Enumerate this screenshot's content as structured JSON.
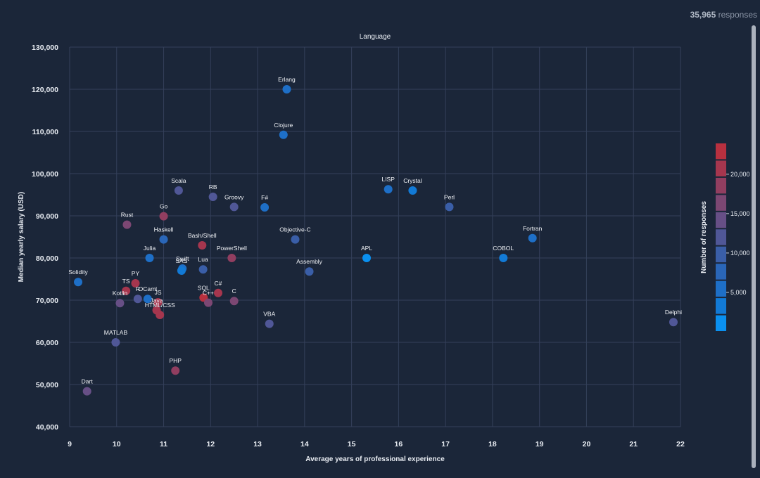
{
  "responses": {
    "count": "35,965",
    "label": "responses"
  },
  "chart_data": {
    "type": "scatter",
    "title": "Language",
    "xlabel": "Average years of professional experience",
    "ylabel": "Median yearly salary (USD)",
    "xlim": [
      9,
      22
    ],
    "ylim": [
      40000,
      130000
    ],
    "xticks": [
      9,
      10,
      11,
      12,
      13,
      14,
      15,
      16,
      17,
      18,
      19,
      20,
      21,
      22
    ],
    "yticks": [
      40000,
      50000,
      60000,
      70000,
      80000,
      90000,
      100000,
      110000,
      120000,
      130000
    ],
    "ytick_labels": [
      "40,000",
      "50,000",
      "60,000",
      "70,000",
      "80,000",
      "90,000",
      "100,000",
      "110,000",
      "120,000",
      "130,000"
    ],
    "colorbar": {
      "label": "Number of responses",
      "ticks": [
        5000,
        10000,
        15000,
        20000
      ],
      "tick_labels": [
        "5,000",
        "10,000",
        "15,000",
        "20,000"
      ],
      "range": [
        0,
        24000
      ],
      "colors": [
        "#0a90f0",
        "#127ad6",
        "#1e6fc7",
        "#2a66b8",
        "#3a5ea7",
        "#505797",
        "#674f86",
        "#7c4773",
        "#913e60",
        "#a6364e",
        "#b8303f"
      ]
    },
    "points": [
      {
        "name": "Erlang",
        "x": 13.62,
        "y": 120000,
        "n": 5800
      },
      {
        "name": "Clojure",
        "x": 13.55,
        "y": 109200,
        "n": 6500
      },
      {
        "name": "LISP",
        "x": 15.78,
        "y": 96300,
        "n": 6200
      },
      {
        "name": "Crystal",
        "x": 16.3,
        "y": 96000,
        "n": 2500
      },
      {
        "name": "Scala",
        "x": 11.32,
        "y": 96000,
        "n": 11000
      },
      {
        "name": "RB",
        "x": 12.05,
        "y": 94500,
        "n": 11000
      },
      {
        "name": "Groovy",
        "x": 12.5,
        "y": 92100,
        "n": 12500
      },
      {
        "name": "F#",
        "x": 13.15,
        "y": 92000,
        "n": 6200
      },
      {
        "name": "Perl",
        "x": 17.08,
        "y": 92100,
        "n": 10500
      },
      {
        "name": "Go",
        "x": 11.0,
        "y": 89900,
        "n": 17500
      },
      {
        "name": "Rust",
        "x": 10.22,
        "y": 87900,
        "n": 15500
      },
      {
        "name": "Haskell",
        "x": 11.0,
        "y": 84400,
        "n": 8500
      },
      {
        "name": "Objective-C",
        "x": 13.8,
        "y": 84400,
        "n": 10000
      },
      {
        "name": "Fortran",
        "x": 18.85,
        "y": 84700,
        "n": 4500
      },
      {
        "name": "Bash/Shell",
        "x": 11.82,
        "y": 83000,
        "n": 21000
      },
      {
        "name": "Julia",
        "x": 10.7,
        "y": 80000,
        "n": 5200
      },
      {
        "name": "PowerShell",
        "x": 12.45,
        "y": 80000,
        "n": 18500
      },
      {
        "name": "APL",
        "x": 15.32,
        "y": 80000,
        "n": 2000
      },
      {
        "name": "COBOL",
        "x": 18.23,
        "y": 80000,
        "n": 4200
      },
      {
        "name": "Swift",
        "x": 11.4,
        "y": 77500,
        "n": 6000
      },
      {
        "name": "SAS",
        "x": 11.38,
        "y": 77000,
        "n": 3000
      },
      {
        "name": "Lua",
        "x": 11.84,
        "y": 77300,
        "n": 10000
      },
      {
        "name": "Assembly",
        "x": 14.1,
        "y": 76800,
        "n": 10500
      },
      {
        "name": "Solidity",
        "x": 9.18,
        "y": 74300,
        "n": 6000
      },
      {
        "name": "PY",
        "x": 10.4,
        "y": 74000,
        "n": 21500
      },
      {
        "name": "TS",
        "x": 10.2,
        "y": 72200,
        "n": 20500
      },
      {
        "name": "R",
        "x": 10.45,
        "y": 70300,
        "n": 11500
      },
      {
        "name": "OCaml",
        "x": 10.66,
        "y": 70300,
        "n": 4500
      },
      {
        "name": "JS",
        "x": 10.88,
        "y": 69500,
        "n": 21000
      },
      {
        "name": "Kotlin",
        "x": 10.07,
        "y": 69300,
        "n": 13500
      },
      {
        "name": "Java",
        "x": 10.85,
        "y": 67600,
        "n": 20000
      },
      {
        "name": "HTML/CSS",
        "x": 10.92,
        "y": 66500,
        "n": 21500
      },
      {
        "name": "SQL",
        "x": 11.85,
        "y": 70600,
        "n": 22000
      },
      {
        "name": "C++",
        "x": 11.95,
        "y": 69400,
        "n": 17000
      },
      {
        "name": "C#",
        "x": 12.16,
        "y": 71700,
        "n": 20000
      },
      {
        "name": "C",
        "x": 12.5,
        "y": 69800,
        "n": 16500
      },
      {
        "name": "VBA",
        "x": 13.25,
        "y": 64400,
        "n": 12500
      },
      {
        "name": "Delphi",
        "x": 21.85,
        "y": 64800,
        "n": 11000
      },
      {
        "name": "MATLAB",
        "x": 9.98,
        "y": 60000,
        "n": 11500
      },
      {
        "name": "PHP",
        "x": 11.25,
        "y": 53300,
        "n": 19500
      },
      {
        "name": "Dart",
        "x": 9.37,
        "y": 48400,
        "n": 14000
      }
    ]
  }
}
